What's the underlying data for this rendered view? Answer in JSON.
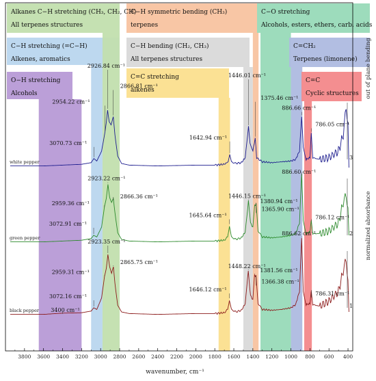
{
  "chart_data": {
    "type": "line",
    "xlabel": "wavenumber, cm⁻¹",
    "ylabel": "normalized absorbance",
    "xlim": [
      4000,
      350
    ],
    "x_reversed": true,
    "x_ticks": [
      3800,
      3600,
      3400,
      3200,
      3000,
      2800,
      2600,
      2400,
      2200,
      2000,
      1800,
      1600,
      1400,
      1200,
      1000,
      800,
      600,
      400
    ],
    "series": [
      {
        "name": "white pepper",
        "color": "#1c1c8e",
        "trace_label": "3",
        "points": [
          [
            3950,
            0.02
          ],
          [
            3600,
            0.02
          ],
          [
            3400,
            0.03
          ],
          [
            3200,
            0.04
          ],
          [
            3100,
            0.06
          ],
          [
            3070.73,
            0.11
          ],
          [
            3040,
            0.08
          ],
          [
            2990,
            0.2
          ],
          [
            2954.22,
            0.43
          ],
          [
            2940,
            0.55
          ],
          [
            2926.84,
            0.7
          ],
          [
            2910,
            0.56
          ],
          [
            2890,
            0.52
          ],
          [
            2866.81,
            0.62
          ],
          [
            2850,
            0.4
          ],
          [
            2820,
            0.14
          ],
          [
            2780,
            0.05
          ],
          [
            2700,
            0.03
          ],
          [
            2400,
            0.02
          ],
          [
            2000,
            0.03
          ],
          [
            1800,
            0.03
          ],
          [
            1700,
            0.04
          ],
          [
            1660,
            0.07
          ],
          [
            1642.94,
            0.16
          ],
          [
            1625,
            0.07
          ],
          [
            1580,
            0.05
          ],
          [
            1520,
            0.06
          ],
          [
            1480,
            0.12
          ],
          [
            1446.01,
            0.5
          ],
          [
            1430,
            0.3
          ],
          [
            1400,
            0.2
          ],
          [
            1375.46,
            0.36
          ],
          [
            1360,
            0.12
          ],
          [
            1300,
            0.07
          ],
          [
            1200,
            0.06
          ],
          [
            1100,
            0.07
          ],
          [
            1000,
            0.08
          ],
          [
            950,
            0.1
          ],
          [
            910,
            0.2
          ],
          [
            886.66,
            0.62
          ],
          [
            870,
            0.25
          ],
          [
            840,
            0.1
          ],
          [
            800,
            0.12
          ],
          [
            786.05,
            0.42
          ],
          [
            770,
            0.12
          ],
          [
            700,
            0.1
          ],
          [
            600,
            0.12
          ],
          [
            500,
            0.2
          ],
          [
            450,
            0.4
          ],
          [
            420,
            0.75
          ],
          [
            400,
            0.5
          ],
          [
            390,
            0.0
          ]
        ]
      },
      {
        "name": "green pepper",
        "color": "#2c8a2c",
        "trace_label": "2",
        "points": [
          [
            3950,
            0.02
          ],
          [
            3600,
            0.02
          ],
          [
            3400,
            0.03
          ],
          [
            3200,
            0.04
          ],
          [
            3100,
            0.06
          ],
          [
            3072.91,
            0.1
          ],
          [
            3040,
            0.08
          ],
          [
            2990,
            0.2
          ],
          [
            2959.36,
            0.45
          ],
          [
            2940,
            0.55
          ],
          [
            2923.22,
            0.72
          ],
          [
            2905,
            0.56
          ],
          [
            2885,
            0.5
          ],
          [
            2866.36,
            0.55
          ],
          [
            2850,
            0.38
          ],
          [
            2820,
            0.13
          ],
          [
            2780,
            0.05
          ],
          [
            2700,
            0.03
          ],
          [
            2400,
            0.02
          ],
          [
            2000,
            0.03
          ],
          [
            1800,
            0.03
          ],
          [
            1700,
            0.04
          ],
          [
            1665,
            0.08
          ],
          [
            1645.64,
            0.22
          ],
          [
            1625,
            0.08
          ],
          [
            1580,
            0.05
          ],
          [
            1520,
            0.07
          ],
          [
            1480,
            0.14
          ],
          [
            1446.15,
            0.52
          ],
          [
            1425,
            0.25
          ],
          [
            1400,
            0.2
          ],
          [
            1380.94,
            0.46
          ],
          [
            1365.9,
            0.48
          ],
          [
            1345,
            0.15
          ],
          [
            1300,
            0.08
          ],
          [
            1200,
            0.07
          ],
          [
            1100,
            0.08
          ],
          [
            1000,
            0.1
          ],
          [
            950,
            0.12
          ],
          [
            910,
            0.25
          ],
          [
            886.6,
            0.85
          ],
          [
            870,
            0.28
          ],
          [
            840,
            0.12
          ],
          [
            800,
            0.14
          ],
          [
            786.12,
            0.28
          ],
          [
            770,
            0.12
          ],
          [
            700,
            0.12
          ],
          [
            600,
            0.15
          ],
          [
            500,
            0.25
          ],
          [
            450,
            0.5
          ],
          [
            420,
            0.6
          ],
          [
            400,
            0.4
          ],
          [
            390,
            0.1
          ]
        ]
      },
      {
        "name": "black pepper",
        "color": "#8b1a1a",
        "trace_label": "1",
        "points": [
          [
            3950,
            0.02
          ],
          [
            3600,
            0.02
          ],
          [
            3400,
            0.035
          ],
          [
            3200,
            0.04
          ],
          [
            3100,
            0.06
          ],
          [
            3072.16,
            0.1
          ],
          [
            3040,
            0.08
          ],
          [
            2990,
            0.22
          ],
          [
            2959.31,
            0.48
          ],
          [
            2940,
            0.58
          ],
          [
            2923.35,
            0.75
          ],
          [
            2905,
            0.6
          ],
          [
            2885,
            0.52
          ],
          [
            2865.75,
            0.6
          ],
          [
            2850,
            0.4
          ],
          [
            2820,
            0.13
          ],
          [
            2780,
            0.05
          ],
          [
            2700,
            0.03
          ],
          [
            2400,
            0.02
          ],
          [
            2000,
            0.03
          ],
          [
            1800,
            0.03
          ],
          [
            1700,
            0.04
          ],
          [
            1665,
            0.08
          ],
          [
            1646.12,
            0.2
          ],
          [
            1625,
            0.08
          ],
          [
            1580,
            0.05
          ],
          [
            1520,
            0.07
          ],
          [
            1480,
            0.15
          ],
          [
            1448.22,
            0.55
          ],
          [
            1425,
            0.25
          ],
          [
            1400,
            0.2
          ],
          [
            1381.56,
            0.5
          ],
          [
            1366.38,
            0.48
          ],
          [
            1345,
            0.15
          ],
          [
            1300,
            0.08
          ],
          [
            1200,
            0.07
          ],
          [
            1100,
            0.08
          ],
          [
            1000,
            0.1
          ],
          [
            950,
            0.14
          ],
          [
            910,
            0.3
          ],
          [
            886.62,
            0.95
          ],
          [
            870,
            0.3
          ],
          [
            840,
            0.14
          ],
          [
            800,
            0.15
          ],
          [
            786.31,
            0.3
          ],
          [
            770,
            0.14
          ],
          [
            700,
            0.12
          ],
          [
            600,
            0.18
          ],
          [
            500,
            0.3
          ],
          [
            450,
            0.55
          ],
          [
            420,
            0.7
          ],
          [
            400,
            0.4
          ],
          [
            390,
            0.05
          ]
        ]
      }
    ],
    "bands": [
      {
        "title": "O−H stretching",
        "subtitle": "Alcohols",
        "range": [
          3650,
          3200
        ],
        "color": "#b79ad6"
      },
      {
        "title": "C−H stretching (=C−H)",
        "subtitle": "Alkenes, aromatics",
        "range": [
          3100,
          2980
        ],
        "color": "#b9d6ee"
      },
      {
        "title": "Alkanes C−H stretching (CH₃, CH₂, CH)",
        "subtitle": "All terpenes structures",
        "range": [
          2980,
          2800
        ],
        "color": "#c2dfae"
      },
      {
        "title": "C=C stretching",
        "subtitle": "alkenes",
        "range": [
          1760,
          1640
        ],
        "color": "#fbdf8e"
      },
      {
        "title": "C−H bending (CH₂, CH₃)",
        "subtitle": "All terpenes structures",
        "range": [
          1500,
          1400
        ],
        "color": "#d9d9d9"
      },
      {
        "title": "C−H symmetric bending (CH₃)",
        "subtitle": "terpenes",
        "range": [
          1400,
          1340
        ],
        "color": "#f8c3a0"
      },
      {
        "title": "C−O stretching",
        "subtitle": "Alcohols, esters, ethers, carb. acids",
        "range": [
          1320,
          1000
        ],
        "color": "#98dab8"
      },
      {
        "title": "C=CH₂",
        "subtitle": "Terpenes (limonene)",
        "range": [
          1000,
          880
        ],
        "color": "#aebbe0"
      },
      {
        "title": "C=C",
        "subtitle": "Cyclic structures",
        "range": [
          860,
          780
        ],
        "color": "#f3888a"
      }
    ],
    "side_annotation": "out of plane bending",
    "annotations": [
      {
        "text": "2926.84 cm⁻¹",
        "series": "white pepper",
        "x": 2926.84
      },
      {
        "text": "2954.22 cm⁻¹",
        "series": "white pepper",
        "x": 2954.22
      },
      {
        "text": "2866.81 cm⁻¹",
        "series": "white pepper",
        "x": 2866.81
      },
      {
        "text": "3070.73 cm⁻¹",
        "series": "white pepper",
        "x": 3070.73
      },
      {
        "text": "1446.01 cm⁻¹",
        "series": "white pepper",
        "x": 1446.01
      },
      {
        "text": "1375.46 cm⁻¹",
        "series": "white pepper",
        "x": 1375.46
      },
      {
        "text": "1642.94 cm⁻¹",
        "series": "white pepper",
        "x": 1642.94
      },
      {
        "text": "886.66 cm⁻¹",
        "series": "white pepper",
        "x": 886.66
      },
      {
        "text": "786.05 cm⁻¹",
        "series": "white pepper",
        "x": 786.05
      },
      {
        "text": "2923.22 cm⁻¹",
        "series": "green pepper",
        "x": 2923.22
      },
      {
        "text": "2959.36 cm⁻¹",
        "series": "green pepper",
        "x": 2959.36
      },
      {
        "text": "2866.36 cm⁻¹",
        "series": "green pepper",
        "x": 2866.36
      },
      {
        "text": "3072.91 cm⁻¹",
        "series": "green pepper",
        "x": 3072.91
      },
      {
        "text": "1446.15 cm⁻¹",
        "series": "green pepper",
        "x": 1446.15
      },
      {
        "text": "1380.94 cm⁻¹",
        "series": "green pepper",
        "x": 1380.94
      },
      {
        "text": "1365.90 cm⁻¹",
        "series": "green pepper",
        "x": 1365.9
      },
      {
        "text": "1645.64 cm⁻¹",
        "series": "green pepper",
        "x": 1645.64
      },
      {
        "text": "886.60 cm⁻¹",
        "series": "green pepper",
        "x": 886.6
      },
      {
        "text": "786.12 cm⁻¹",
        "series": "green pepper",
        "x": 786.12
      },
      {
        "text": "2923.35 cm⁻¹",
        "series": "black pepper",
        "x": 2923.35
      },
      {
        "text": "2959.31 cm⁻¹",
        "series": "black pepper",
        "x": 2959.31
      },
      {
        "text": "2865.75 cm⁻¹",
        "series": "black pepper",
        "x": 2865.75
      },
      {
        "text": "3072.16 cm⁻¹",
        "series": "black pepper",
        "x": 3072.16
      },
      {
        "text": "3400 cm⁻¹",
        "series": "black pepper",
        "x": 3400
      },
      {
        "text": "1448.22 cm⁻¹",
        "series": "black pepper",
        "x": 1448.22
      },
      {
        "text": "1381.56 cm⁻¹",
        "series": "black pepper",
        "x": 1381.56
      },
      {
        "text": "1366.38 cm⁻¹",
        "series": "black pepper",
        "x": 1366.38
      },
      {
        "text": "1646.12 cm⁻¹",
        "series": "black pepper",
        "x": 1646.12
      },
      {
        "text": "886.62 cm⁻¹",
        "series": "black pepper",
        "x": 886.62
      },
      {
        "text": "786.31 cm⁻¹",
        "series": "black pepper",
        "x": 786.31
      }
    ],
    "grid": false
  }
}
